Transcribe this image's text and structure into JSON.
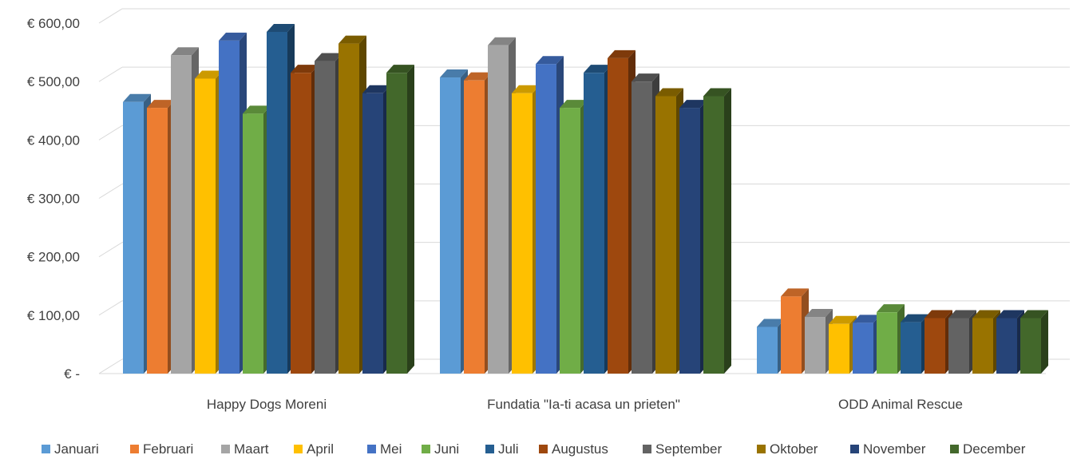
{
  "chart_data": {
    "type": "bar",
    "style": "3d-clustered-column",
    "title": "",
    "xlabel": "",
    "ylabel": "",
    "ylim": [
      0,
      600
    ],
    "y_tick_values": [
      0,
      100,
      200,
      300,
      400,
      500,
      600
    ],
    "y_tick_labels": [
      "€ -",
      "€ 100,00",
      "€ 200,00",
      "€ 300,00",
      "€ 400,00",
      "€ 500,00",
      "€ 600,00"
    ],
    "grid": true,
    "legend_position": "bottom",
    "categories": [
      "Happy Dogs Moreni",
      "Fundatia \"Ia-ti acasa un prieten\"",
      "ODD Animal Rescue"
    ],
    "series": [
      {
        "name": "Januari",
        "color": "#5B9BD5",
        "values": [
          465,
          507,
          80
        ]
      },
      {
        "name": "Februari",
        "color": "#ED7D31",
        "values": [
          455,
          502,
          132
        ]
      },
      {
        "name": "Maart",
        "color": "#A5A5A5",
        "values": [
          545,
          562,
          97
        ]
      },
      {
        "name": "April",
        "color": "#FFC000",
        "values": [
          505,
          480,
          85
        ]
      },
      {
        "name": "Mei",
        "color": "#4472C4",
        "values": [
          570,
          530,
          87
        ]
      },
      {
        "name": "Juni",
        "color": "#70AD47",
        "values": [
          445,
          455,
          105
        ]
      },
      {
        "name": "Juli",
        "color": "#255E91",
        "values": [
          585,
          515,
          88
        ]
      },
      {
        "name": "Augustus",
        "color": "#9E480E",
        "values": [
          515,
          540,
          95
        ]
      },
      {
        "name": "September",
        "color": "#636363",
        "values": [
          535,
          500,
          95
        ]
      },
      {
        "name": "Oktober",
        "color": "#997300",
        "values": [
          565,
          475,
          95
        ]
      },
      {
        "name": "November",
        "color": "#264478",
        "values": [
          480,
          455,
          95
        ]
      },
      {
        "name": "December",
        "color": "#43682B",
        "values": [
          515,
          475,
          95
        ]
      }
    ]
  }
}
